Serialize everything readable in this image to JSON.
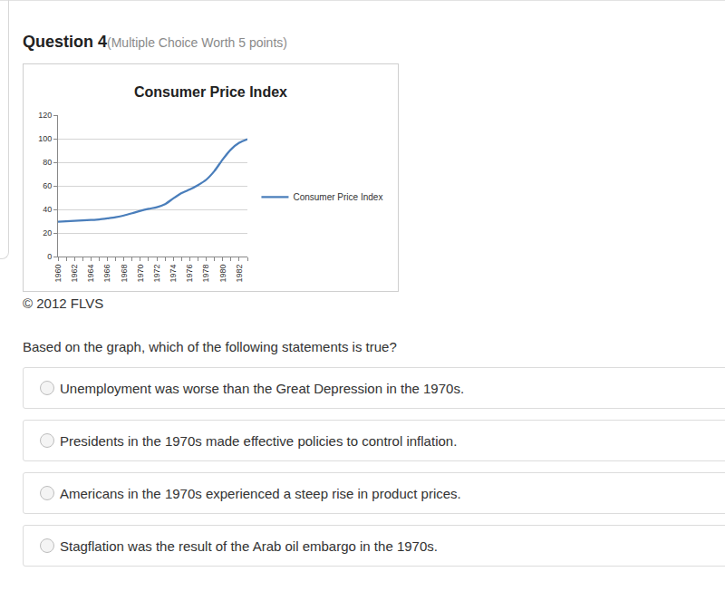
{
  "header": {
    "title": "Question 4",
    "subtitle": "(Multiple Choice Worth 5 points)"
  },
  "chart_data": {
    "type": "line",
    "title": "Consumer Price Index",
    "categories": [
      "1960",
      null,
      "1962",
      null,
      "1964",
      null,
      "1966",
      null,
      "1968",
      null,
      "1970",
      null,
      "1972",
      null,
      "1974",
      null,
      "1976",
      null,
      "1978",
      null,
      "1980",
      null,
      "1982",
      null
    ],
    "series": [
      {
        "name": "Consumer Price Index",
        "color": "#4a7ebb",
        "values": [
          29.6,
          29.9,
          30.2,
          30.6,
          31.0,
          31.5,
          32.4,
          33.4,
          34.8,
          36.7,
          38.8,
          40.5,
          41.8,
          44.4,
          49.3,
          53.8,
          56.9,
          60.6,
          65.2,
          72.6,
          82.4,
          90.9,
          96.5,
          99.6
        ]
      }
    ],
    "ylim": [
      0,
      120
    ],
    "yticks": [
      0,
      20,
      40,
      60,
      80,
      100,
      120
    ],
    "grid": true,
    "legend": "right"
  },
  "credit": "© 2012 FLVS",
  "question": "Based on the graph, which of the following statements is true?",
  "options": [
    "Unemployment was worse than the Great Depression in the 1970s.",
    "Presidents in the 1970s made effective policies to control inflation.",
    "Americans in the 1970s experienced a steep rise in product prices.",
    "Stagflation was the result of the Arab oil embargo in the 1970s."
  ]
}
